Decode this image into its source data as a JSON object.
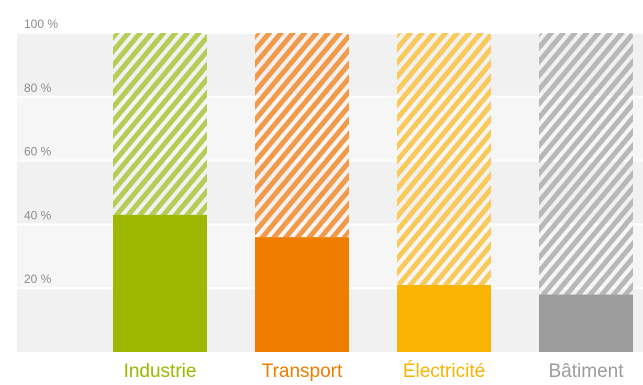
{
  "chart_data": {
    "type": "bar",
    "categories": [
      "Industrie",
      "Transport",
      "Électricité",
      "Bâtiment"
    ],
    "values": [
      43,
      36,
      21,
      18
    ],
    "ylim": [
      0,
      100
    ],
    "yticks": [
      20,
      40,
      60,
      80,
      100
    ],
    "ytick_labels": [
      "20 %",
      "40 %",
      "60 %",
      "80 %",
      "100 %"
    ],
    "remainder_style": "hatched",
    "grid": true,
    "colors": {
      "solid": [
        "#9cb800",
        "#ee7d00",
        "#f8b400",
        "#9c9c9c"
      ],
      "hatch": [
        "#b4cd55",
        "#f29a4a",
        "#f9c95a",
        "#b8b8b8"
      ],
      "background_bands": [
        "#f1f1f1",
        "#f6f6f6"
      ],
      "gridline": "#ffffff",
      "tick_text": "#8c8c8c"
    }
  }
}
